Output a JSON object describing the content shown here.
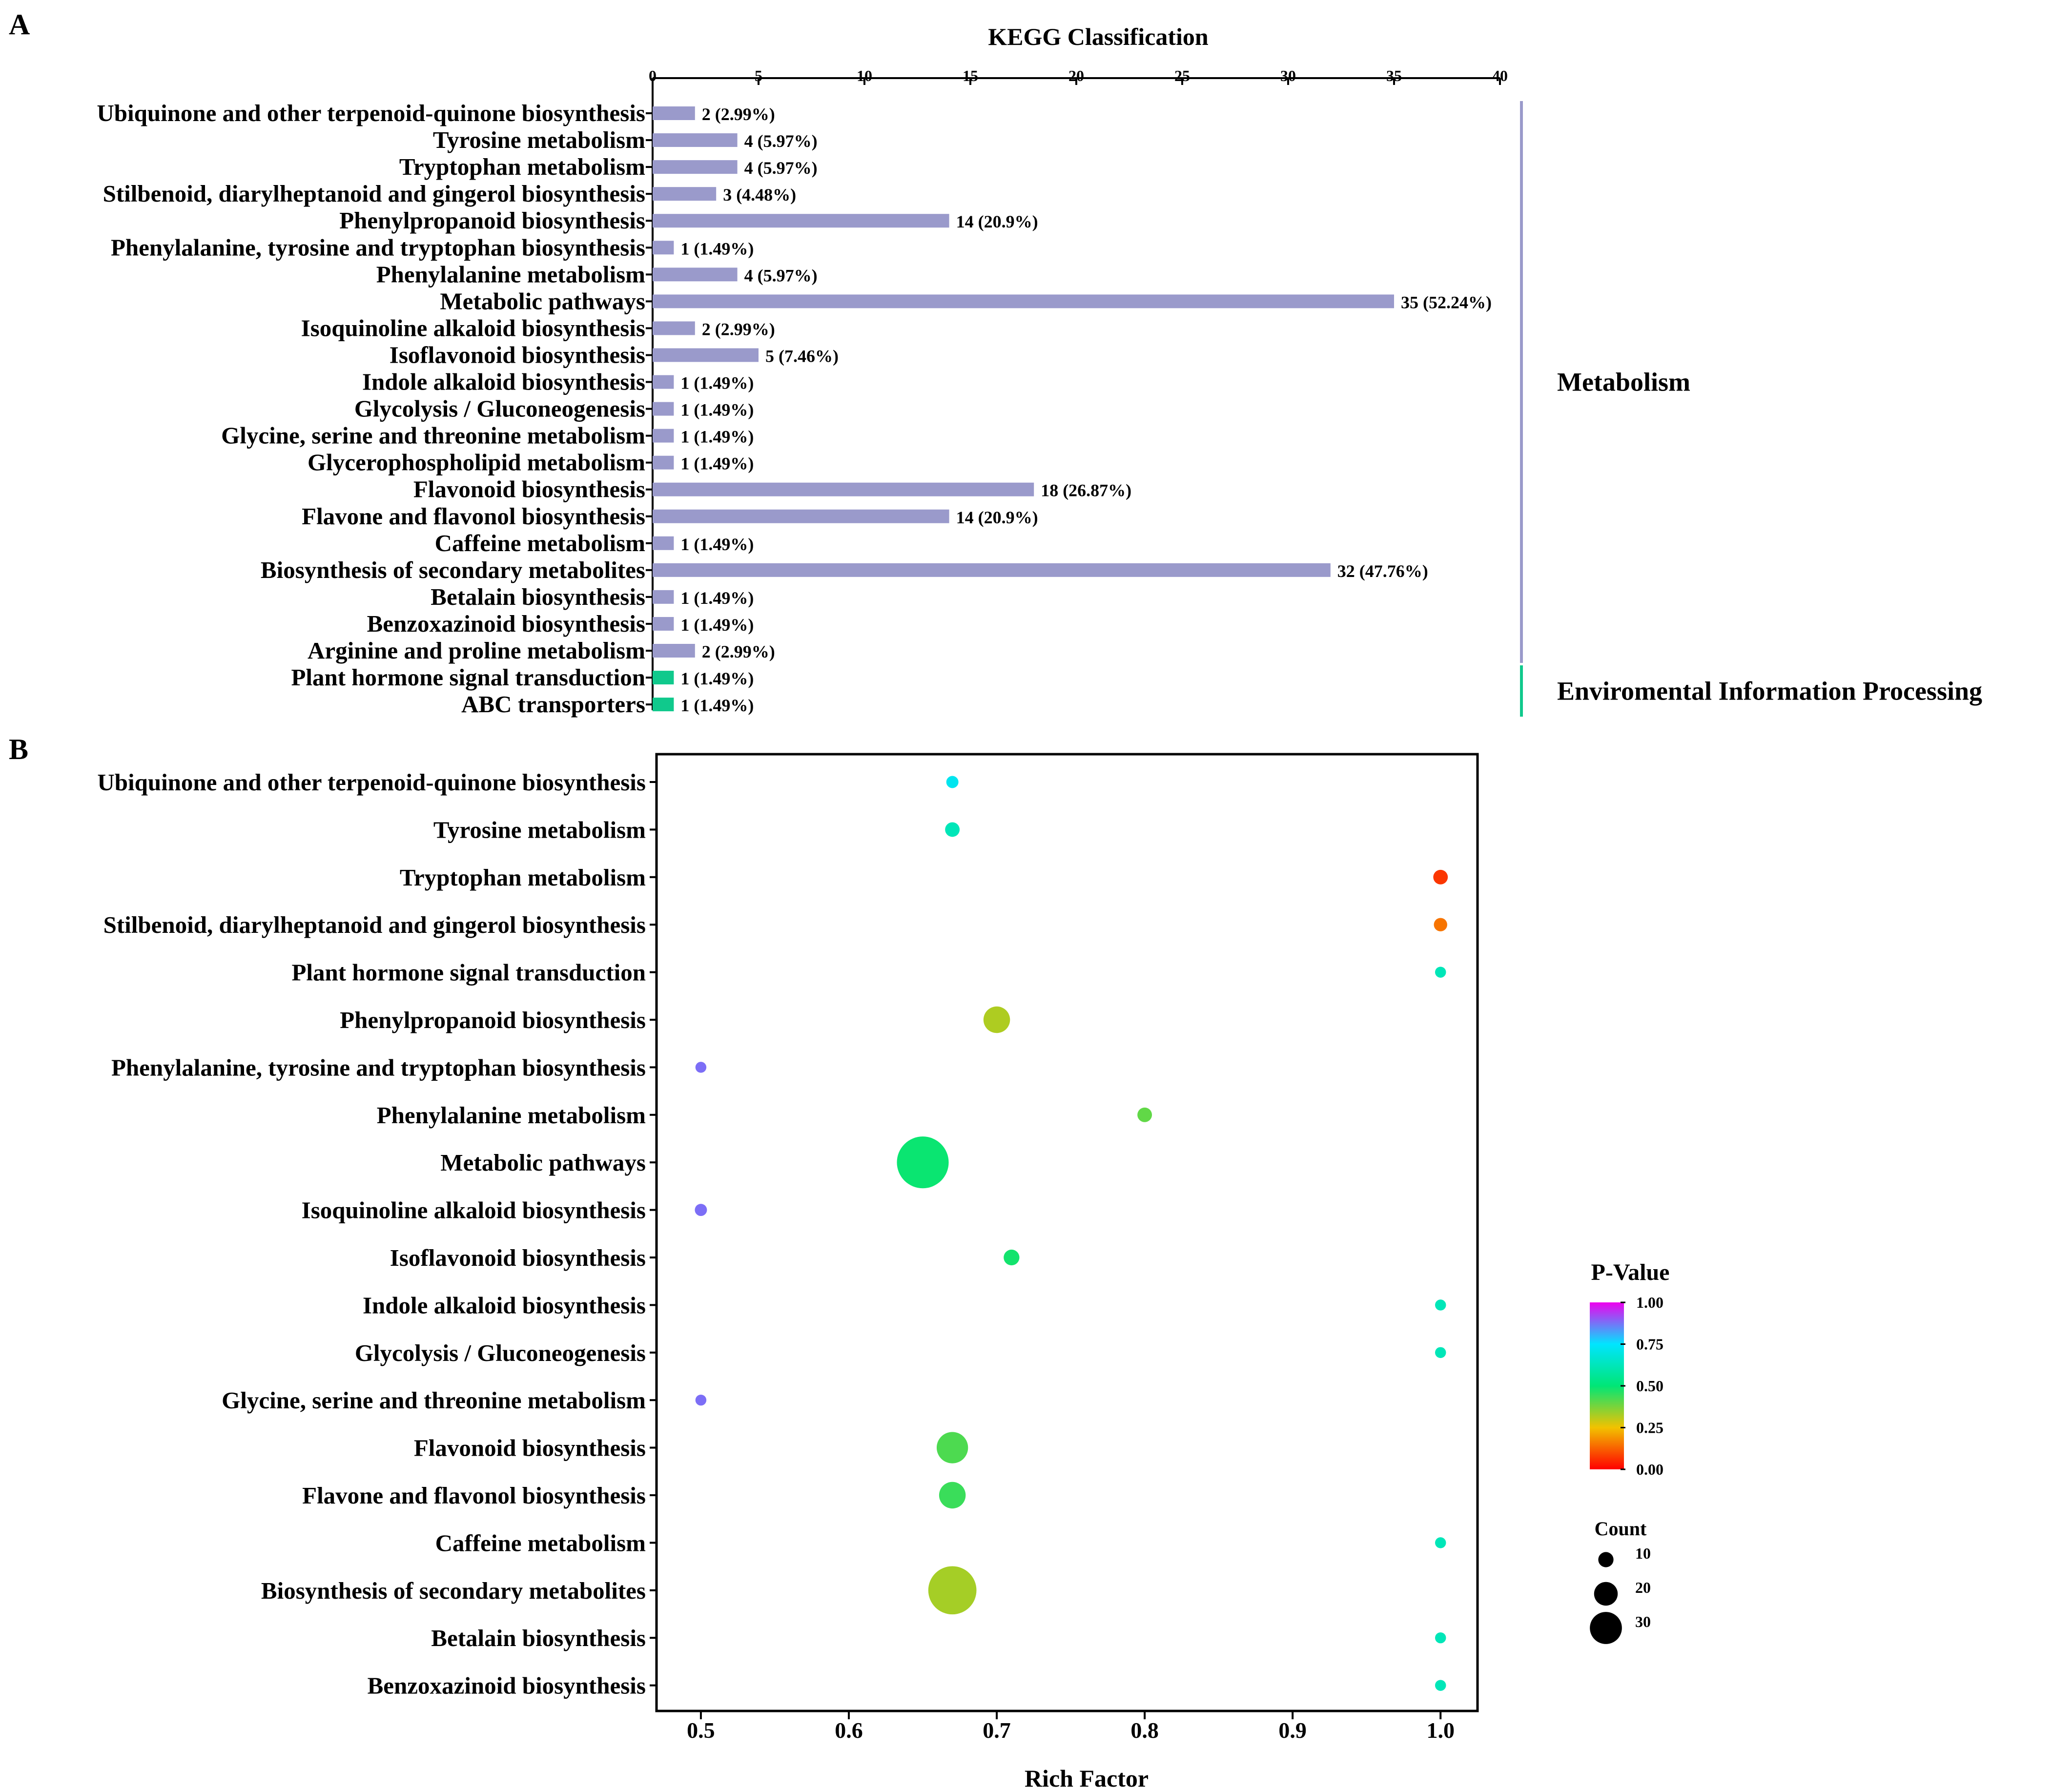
{
  "colors": {
    "metabolism_bar": "#9a9acb",
    "env_bar": "#10c98c",
    "axis": "#000000",
    "gradient": [
      "#ee00ee",
      "#00e5ff",
      "#00e676",
      "#f2c200",
      "#ff0000"
    ]
  },
  "chart_data": [
    {
      "type": "bar",
      "orientation": "horizontal",
      "panel_label": "A",
      "title": "KEGG Classification",
      "xlim": [
        0,
        40
      ],
      "xticks": [
        0,
        5,
        10,
        15,
        20,
        25,
        30,
        35,
        40
      ],
      "categories": [
        "Ubiquinone and other terpenoid-quinone biosynthesis",
        "Tyrosine metabolism",
        "Tryptophan metabolism",
        "Stilbenoid, diarylheptanoid and gingerol biosynthesis",
        "Phenylpropanoid biosynthesis",
        "Phenylalanine, tyrosine and tryptophan biosynthesis",
        "Phenylalanine metabolism",
        "Metabolic pathways",
        "Isoquinoline alkaloid biosynthesis",
        "Isoflavonoid biosynthesis",
        "Indole alkaloid biosynthesis",
        "Glycolysis / Gluconeogenesis",
        "Glycine, serine and threonine metabolism",
        "Glycerophospholipid metabolism",
        "Flavonoid biosynthesis",
        "Flavone and flavonol biosynthesis",
        "Caffeine metabolism",
        "Biosynthesis of secondary metabolites",
        "Betalain biosynthesis",
        "Benzoxazinoid biosynthesis",
        "Arginine and proline metabolism",
        "Plant hormone signal transduction",
        "ABC transporters"
      ],
      "values": [
        2,
        4,
        4,
        3,
        14,
        1,
        4,
        35,
        2,
        5,
        1,
        1,
        1,
        1,
        18,
        14,
        1,
        32,
        1,
        1,
        2,
        1,
        1
      ],
      "value_labels": [
        "2 (2.99%)",
        "4 (5.97%)",
        "4 (5.97%)",
        "3 (4.48%)",
        "14 (20.9%)",
        "1 (1.49%)",
        "4 (5.97%)",
        "35 (52.24%)",
        "2 (2.99%)",
        "5 (7.46%)",
        "1 (1.49%)",
        "1 (1.49%)",
        "1 (1.49%)",
        "1 (1.49%)",
        "18 (26.87%)",
        "14 (20.9%)",
        "1 (1.49%)",
        "32 (47.76%)",
        "1 (1.49%)",
        "1 (1.49%)",
        "2 (2.99%)",
        "1 (1.49%)",
        "1 (1.49%)"
      ],
      "groups": [
        {
          "name": "Metabolism",
          "first": 0,
          "last": 20,
          "color_key": "metabolism_bar"
        },
        {
          "name": "Enviromental Information Processing",
          "first": 21,
          "last": 22,
          "color_key": "env_bar"
        }
      ]
    },
    {
      "type": "scatter",
      "panel_label": "B",
      "xlabel": "Rich Factor",
      "xlim": [
        0.47,
        1.025
      ],
      "xticks": [
        0.5,
        0.6,
        0.7,
        0.8,
        0.9,
        1.0
      ],
      "xtick_labels": [
        "0.5",
        "0.6",
        "0.7",
        "0.8",
        "0.9",
        "1.0"
      ],
      "categories": [
        "Ubiquinone and other terpenoid-quinone biosynthesis",
        "Tyrosine metabolism",
        "Tryptophan metabolism",
        "Stilbenoid, diarylheptanoid and gingerol biosynthesis",
        "Plant hormone signal transduction",
        "Phenylpropanoid biosynthesis",
        "Phenylalanine, tyrosine and tryptophan biosynthesis",
        "Phenylalanine metabolism",
        "Metabolic pathways",
        "Isoquinoline alkaloid biosynthesis",
        "Isoflavonoid biosynthesis",
        "Indole alkaloid biosynthesis",
        "Glycolysis / Gluconeogenesis",
        "Glycine, serine and threonine metabolism",
        "Flavonoid biosynthesis",
        "Flavone and flavonol biosynthesis",
        "Caffeine metabolism",
        "Biosynthesis of secondary metabolites",
        "Betalain biosynthesis",
        "Benzoxazinoid biosynthesis"
      ],
      "rich_factor": [
        0.67,
        0.67,
        1.0,
        1.0,
        1.0,
        0.7,
        0.5,
        0.8,
        0.65,
        0.5,
        0.71,
        1.0,
        1.0,
        0.5,
        0.67,
        0.67,
        1.0,
        0.67,
        1.0,
        1.0
      ],
      "count": [
        2,
        4,
        4,
        3,
        1,
        14,
        1,
        4,
        35,
        2,
        5,
        1,
        1,
        1,
        18,
        14,
        1,
        32,
        1,
        1
      ],
      "p_value": [
        0.72,
        0.62,
        0.07,
        0.15,
        0.62,
        0.32,
        0.88,
        0.4,
        0.49,
        0.88,
        0.48,
        0.62,
        0.62,
        0.88,
        0.42,
        0.44,
        0.62,
        0.33,
        0.62,
        0.62
      ],
      "color_legend": {
        "title": "P-Value",
        "ticks": [
          1.0,
          0.75,
          0.5,
          0.25,
          0.0
        ],
        "tick_labels": [
          "1.00",
          "0.75",
          "0.50",
          "0.25",
          "0.00"
        ]
      },
      "size_legend": {
        "title": "Count",
        "values": [
          10,
          20,
          30
        ],
        "labels": [
          "10",
          "20",
          "30"
        ]
      }
    }
  ]
}
